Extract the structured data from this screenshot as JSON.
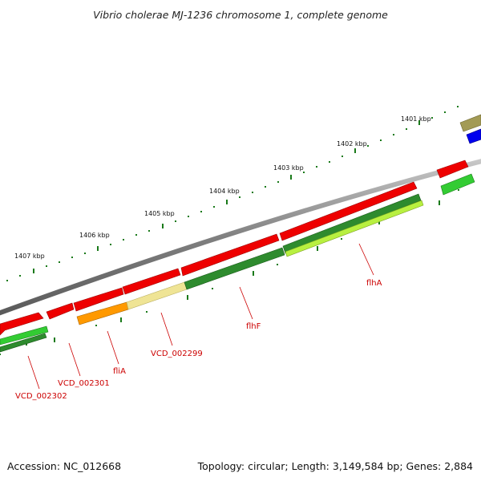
{
  "title": "Vibrio cholerae MJ-1236 chromosome 1, complete genome",
  "accession": "Accession: NC_012668",
  "summary": "Topology: circular; Length: 3,149,584 bp; Genes: 2,884",
  "scale_labels": [
    "1401 kbp",
    "1402 kbp",
    "1403 kbp",
    "1404 kbp",
    "1405 kbp",
    "1406 kbp",
    "1407 kbp"
  ],
  "gene_labels": [
    "flhA",
    "flhF",
    "VCD_002299",
    "fliA",
    "VCD_002301",
    "VCD_002302"
  ],
  "colors": {
    "backbone": "#808080",
    "gene_red": "#ee0000",
    "cds_dark_green": "#2e8b2e",
    "cds_lime": "#b8f040",
    "cds_green": "#33cc33",
    "cds_orange": "#ff9900",
    "cds_khaki": "#efe495",
    "olive": "#a39b55",
    "blue": "#0000ee",
    "tick_green": "#1a7a1a",
    "label_red": "#cc0000"
  }
}
